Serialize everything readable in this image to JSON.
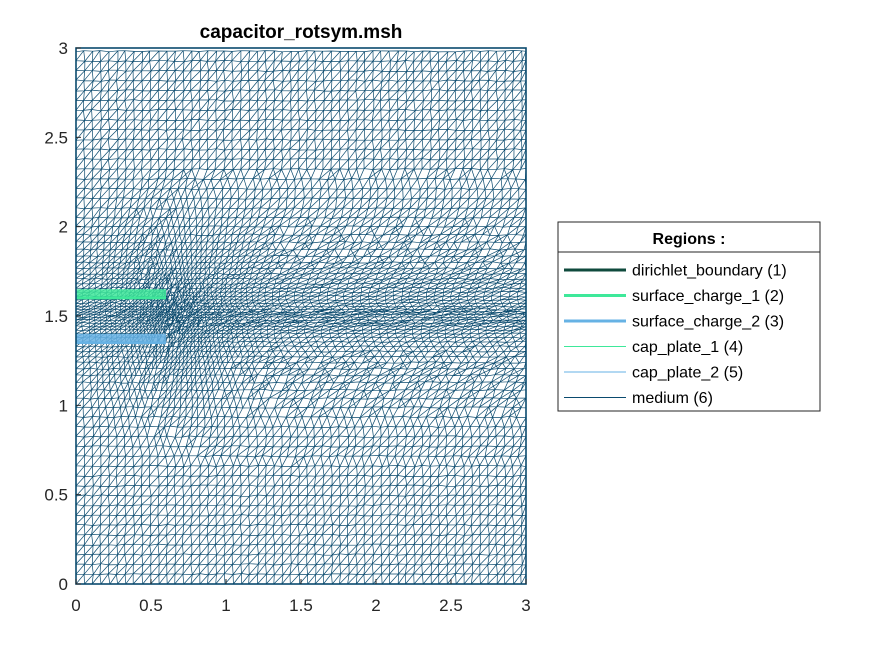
{
  "chart_data": {
    "type": "mesh",
    "title": "capacitor_rotsym.msh",
    "xlabel": "",
    "ylabel": "",
    "xlim": [
      0,
      3
    ],
    "ylim": [
      0,
      3
    ],
    "x_ticks": [
      "0",
      "0.5",
      "1",
      "1.5",
      "2",
      "2.5",
      "3"
    ],
    "y_ticks": [
      "0",
      "0.5",
      "1",
      "1.5",
      "2",
      "2.5",
      "3"
    ],
    "grid": false,
    "legend": {
      "title": "Regions :",
      "placement": "outside-right",
      "entries": [
        {
          "label": "dirichlet_boundary (1)",
          "color": "#0f4a3c",
          "style": "thick"
        },
        {
          "label": "surface_charge_1 (2)",
          "color": "#3ee89a",
          "style": "thick"
        },
        {
          "label": "surface_charge_2 (3)",
          "color": "#66b2e4",
          "style": "thick"
        },
        {
          "label": "cap_plate_1 (4)",
          "color": "#3ee89a",
          "style": "thin"
        },
        {
          "label": "cap_plate_2 (5)",
          "color": "#66b2e4",
          "style": "thin"
        },
        {
          "label": "medium (6)",
          "color": "#0a4a6e",
          "style": "thin"
        }
      ]
    },
    "domain": {
      "x": [
        0,
        3
      ],
      "y": [
        0,
        3
      ]
    },
    "plates": [
      {
        "region": "cap_plate_1 (4)",
        "x": [
          0,
          0.6
        ],
        "y": [
          1.6,
          1.65
        ],
        "color": "#3ee89a"
      },
      {
        "region": "cap_plate_2 (5)",
        "x": [
          0,
          0.6
        ],
        "y": [
          1.35,
          1.4
        ],
        "color": "#66b2e4"
      }
    ],
    "mesh_color": "#0a4a6e",
    "refinement_center": [
      0.62,
      1.5
    ]
  }
}
